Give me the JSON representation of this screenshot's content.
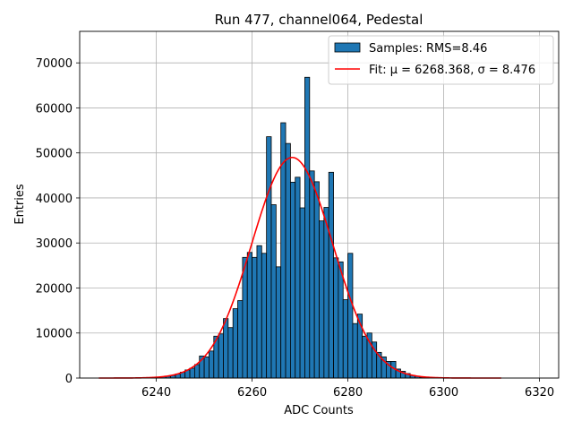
{
  "chart_data": {
    "type": "bar",
    "title": "Run 477, channel064, Pedestal",
    "xlabel": "ADC Counts",
    "ylabel": "Entries",
    "xlim": [
      6224,
      6324
    ],
    "ylim": [
      0,
      77000
    ],
    "grid": true,
    "xticks": [
      6240,
      6260,
      6280,
      6300,
      6320
    ],
    "yticks": [
      0,
      10000,
      20000,
      30000,
      40000,
      50000,
      60000,
      70000
    ],
    "legend_position": "top-right",
    "histogram": {
      "name": "Samples: RMS=8.46",
      "bin_start": 6228,
      "bin_width": 1,
      "color": "#1f77b4",
      "edge_color": "#000000",
      "values": [
        0,
        0,
        0,
        0,
        0,
        0,
        0,
        0,
        0,
        0,
        0,
        100,
        200,
        300,
        400,
        600,
        900,
        1300,
        1800,
        2200,
        3000,
        4900,
        4700,
        6000,
        9300,
        9800,
        13200,
        11200,
        15400,
        17200,
        26800,
        27900,
        26800,
        29400,
        27700,
        53600,
        38500,
        24700,
        56700,
        52100,
        43500,
        44600,
        37800,
        66800,
        46000,
        43600,
        34900,
        37900,
        45700,
        26700,
        25800,
        17400,
        27700,
        12100,
        14200,
        9300,
        10000,
        8000,
        5700,
        4700,
        3700,
        3700,
        2000,
        1500,
        1000,
        600,
        400,
        200,
        100,
        0,
        0,
        0,
        0,
        0,
        0,
        0,
        0,
        0,
        0,
        0,
        0,
        0,
        0,
        0
      ]
    },
    "fit": {
      "name": "Fit: μ = 6268.368, σ = 8.476",
      "mu": 6268.368,
      "sigma": 8.476,
      "amplitude": 49000,
      "x_range": [
        6228,
        6312
      ],
      "color": "#ff0000"
    }
  }
}
